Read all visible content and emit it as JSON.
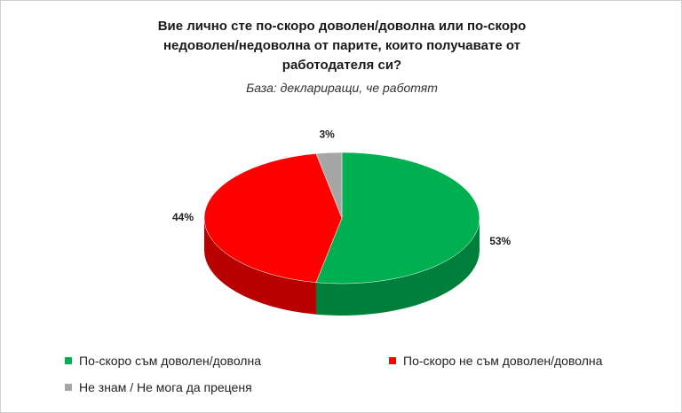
{
  "chart_data": {
    "type": "pie",
    "title": "Вие лично сте по-скоро доволен/доволна или по-скоро недоволен/недоволна от парите, които получавате от работодателя си?",
    "subtitle": "База: деклариращи, че работят",
    "categories": [
      "По-скоро съм доволен/доволна",
      "По-скоро не съм доволен/доволна",
      "Не знам / Не мога да преценя"
    ],
    "values": [
      53,
      44,
      3
    ],
    "value_labels": [
      "53%",
      "44%",
      "3%"
    ],
    "colors": [
      "#00b050",
      "#ff0000",
      "#a6a6a6"
    ]
  }
}
